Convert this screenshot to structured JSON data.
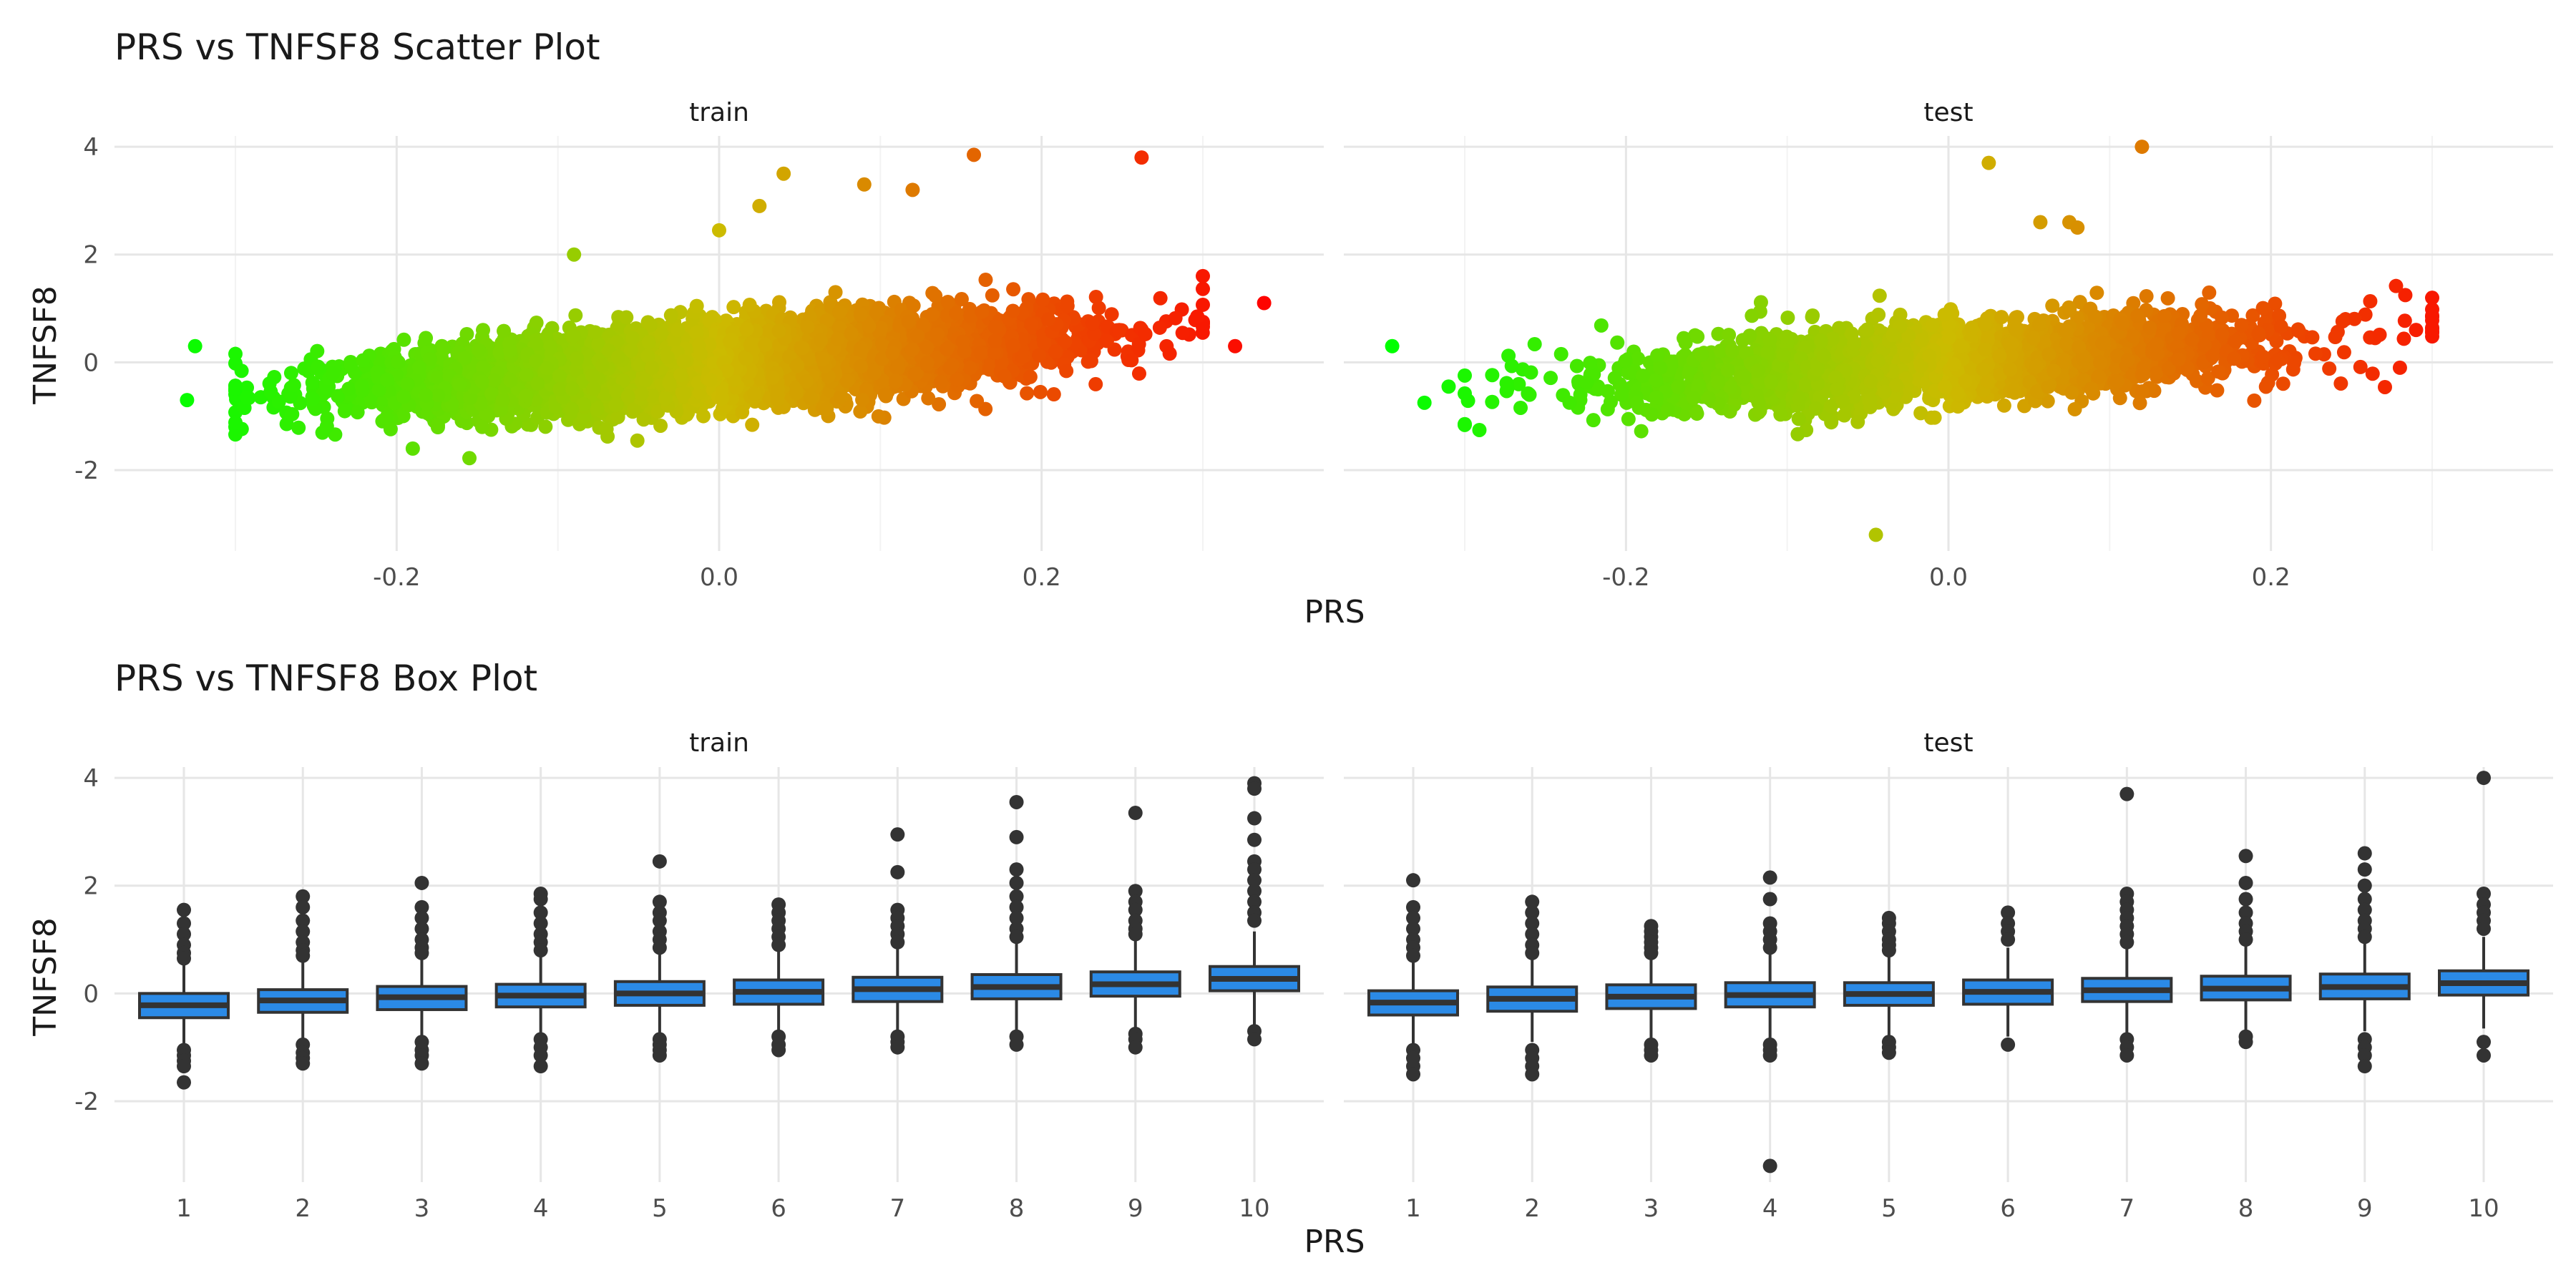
{
  "chart_data": [
    {
      "type": "scatter",
      "title": "PRS vs TNFSF8 Scatter Plot",
      "xlabel": "PRS",
      "ylabel": "TNFSF8",
      "facets": [
        "train",
        "test"
      ],
      "xlim": [
        -0.375,
        0.375
      ],
      "ylim": [
        -3.5,
        4.2
      ],
      "x_ticks": [
        -0.2,
        0.0,
        0.2
      ],
      "x_tick_labels": [
        "-0.2",
        "0.0",
        "0.2"
      ],
      "y_ticks": [
        -2,
        0,
        2,
        4
      ],
      "y_tick_labels": [
        "-2",
        "0",
        "2",
        "4"
      ],
      "grid": true,
      "color_gradient": [
        "#00ff00",
        "#ccbb00",
        "#ff0000"
      ],
      "trend": {
        "slope": 2.0,
        "intercept": 0.0,
        "sd": 0.35
      },
      "panels": [
        {
          "facet": "train",
          "n_points": 6000,
          "x_mean": 0.0,
          "x_sd": 0.1,
          "highlighted_points": [
            {
              "x": -0.325,
              "y": 0.3
            },
            {
              "x": -0.33,
              "y": -0.7
            },
            {
              "x": -0.19,
              "y": -1.6
            },
            {
              "x": -0.09,
              "y": 2.0
            },
            {
              "x": 0.0,
              "y": 2.45
            },
            {
              "x": 0.025,
              "y": 2.9
            },
            {
              "x": 0.04,
              "y": 3.5
            },
            {
              "x": 0.09,
              "y": 3.3
            },
            {
              "x": 0.12,
              "y": 3.2
            },
            {
              "x": 0.158,
              "y": 3.85
            },
            {
              "x": 0.262,
              "y": 3.8
            },
            {
              "x": 0.3,
              "y": 1.6
            },
            {
              "x": 0.338,
              "y": 1.1
            },
            {
              "x": 0.32,
              "y": 0.3
            }
          ]
        },
        {
          "facet": "test",
          "n_points": 2500,
          "x_mean": 0.0,
          "x_sd": 0.1,
          "highlighted_points": [
            {
              "x": -0.345,
              "y": 0.3
            },
            {
              "x": -0.325,
              "y": -0.75
            },
            {
              "x": -0.31,
              "y": -0.45
            },
            {
              "x": -0.045,
              "y": -3.2
            },
            {
              "x": 0.025,
              "y": 3.7
            },
            {
              "x": 0.12,
              "y": 4.0
            },
            {
              "x": 0.057,
              "y": 2.6
            },
            {
              "x": 0.075,
              "y": 2.6
            },
            {
              "x": 0.08,
              "y": 2.5
            },
            {
              "x": 0.29,
              "y": 0.6
            },
            {
              "x": 0.28,
              "y": -0.1
            }
          ]
        }
      ]
    },
    {
      "type": "box",
      "title": "PRS vs TNFSF8 Box Plot",
      "xlabel": "PRS",
      "ylabel": "TNFSF8",
      "facets": [
        "train",
        "test"
      ],
      "categories": [
        "1",
        "2",
        "3",
        "4",
        "5",
        "6",
        "7",
        "8",
        "9",
        "10"
      ],
      "ylim": [
        -3.5,
        4.2
      ],
      "y_ticks": [
        -2,
        0,
        2,
        4
      ],
      "y_tick_labels": [
        "-2",
        "0",
        "2",
        "4"
      ],
      "grid": true,
      "box_color": "#2b8ae6",
      "outline_color": "#333333",
      "panels": [
        {
          "facet": "train",
          "boxes": [
            {
              "q1": -0.45,
              "median": -0.22,
              "q3": 0.0,
              "lower": -1.0,
              "upper": 0.6,
              "outliers": [
                1.55,
                1.3,
                1.1,
                0.9,
                0.75,
                0.65,
                -1.05,
                -1.15,
                -1.25,
                -1.35,
                -1.65
              ]
            },
            {
              "q1": -0.35,
              "median": -0.13,
              "q3": 0.07,
              "lower": -0.95,
              "upper": 0.65,
              "outliers": [
                1.8,
                1.6,
                1.35,
                1.15,
                0.95,
                0.8,
                0.7,
                -0.95,
                -1.1,
                -1.2,
                -1.3
              ]
            },
            {
              "q1": -0.3,
              "median": -0.07,
              "q3": 0.13,
              "lower": -0.9,
              "upper": 0.7,
              "outliers": [
                2.05,
                1.6,
                1.4,
                1.2,
                1.0,
                0.85,
                0.75,
                -0.9,
                -1.05,
                -1.15,
                -1.3
              ]
            },
            {
              "q1": -0.25,
              "median": -0.04,
              "q3": 0.17,
              "lower": -0.85,
              "upper": 0.75,
              "outliers": [
                1.85,
                1.75,
                1.5,
                1.3,
                1.1,
                0.95,
                0.8,
                -0.85,
                -1.0,
                -1.15,
                -1.35
              ]
            },
            {
              "q1": -0.22,
              "median": 0.0,
              "q3": 0.22,
              "lower": -0.85,
              "upper": 0.8,
              "outliers": [
                2.45,
                1.7,
                1.5,
                1.35,
                1.15,
                1.0,
                0.85,
                -0.85,
                -0.95,
                -1.05,
                -1.15
              ]
            },
            {
              "q1": -0.2,
              "median": 0.03,
              "q3": 0.25,
              "lower": -0.8,
              "upper": 0.85,
              "outliers": [
                1.65,
                1.5,
                1.35,
                1.2,
                1.05,
                0.9,
                -0.8,
                -0.95,
                -1.05
              ]
            },
            {
              "q1": -0.15,
              "median": 0.08,
              "q3": 0.3,
              "lower": -0.75,
              "upper": 0.9,
              "outliers": [
                2.95,
                2.25,
                1.55,
                1.4,
                1.25,
                1.1,
                0.95,
                -0.8,
                -0.9,
                -1.0
              ]
            },
            {
              "q1": -0.1,
              "median": 0.12,
              "q3": 0.35,
              "lower": -0.75,
              "upper": 0.95,
              "outliers": [
                3.55,
                2.9,
                2.3,
                2.05,
                1.8,
                1.6,
                1.4,
                1.2,
                1.05,
                -0.8,
                -0.95
              ]
            },
            {
              "q1": -0.05,
              "median": 0.17,
              "q3": 0.4,
              "lower": -0.7,
              "upper": 1.0,
              "outliers": [
                3.35,
                1.9,
                1.7,
                1.55,
                1.35,
                1.2,
                1.1,
                -0.75,
                -0.85,
                -1.0
              ]
            },
            {
              "q1": 0.05,
              "median": 0.27,
              "q3": 0.5,
              "lower": -0.6,
              "upper": 1.15,
              "outliers": [
                3.9,
                3.8,
                3.25,
                2.85,
                2.45,
                2.3,
                2.1,
                1.9,
                1.7,
                1.5,
                1.35,
                -0.7,
                -0.85
              ]
            }
          ]
        },
        {
          "facet": "test",
          "boxes": [
            {
              "q1": -0.4,
              "median": -0.17,
              "q3": 0.05,
              "lower": -0.95,
              "upper": 0.6,
              "outliers": [
                2.1,
                1.6,
                1.4,
                1.2,
                1.0,
                0.85,
                0.7,
                -1.05,
                -1.2,
                -1.35,
                -1.5
              ]
            },
            {
              "q1": -0.33,
              "median": -0.1,
              "q3": 0.12,
              "lower": -0.9,
              "upper": 0.65,
              "outliers": [
                1.7,
                1.5,
                1.3,
                1.1,
                0.9,
                0.75,
                -1.05,
                -1.2,
                -1.35,
                -1.5
              ]
            },
            {
              "q1": -0.28,
              "median": -0.06,
              "q3": 0.16,
              "lower": -0.85,
              "upper": 0.7,
              "outliers": [
                1.25,
                1.15,
                1.05,
                0.95,
                0.85,
                0.75,
                -0.95,
                -1.05,
                -1.15
              ]
            },
            {
              "q1": -0.25,
              "median": -0.03,
              "q3": 0.2,
              "lower": -0.85,
              "upper": 0.75,
              "outliers": [
                2.15,
                1.75,
                1.3,
                1.15,
                1.0,
                0.85,
                -0.95,
                -1.05,
                -1.15,
                -3.2
              ]
            },
            {
              "q1": -0.22,
              "median": -0.01,
              "q3": 0.2,
              "lower": -0.85,
              "upper": 0.75,
              "outliers": [
                1.4,
                1.3,
                1.15,
                1.0,
                0.9,
                0.8,
                -0.9,
                -1.0,
                -1.1
              ]
            },
            {
              "q1": -0.2,
              "median": 0.03,
              "q3": 0.25,
              "lower": -0.8,
              "upper": 0.85,
              "outliers": [
                1.5,
                1.3,
                1.15,
                1.0,
                -0.95
              ]
            },
            {
              "q1": -0.15,
              "median": 0.06,
              "q3": 0.28,
              "lower": -0.75,
              "upper": 0.9,
              "outliers": [
                3.7,
                1.85,
                1.7,
                1.55,
                1.4,
                1.25,
                1.1,
                0.95,
                -0.85,
                -1.0,
                -1.15
              ]
            },
            {
              "q1": -0.12,
              "median": 0.09,
              "q3": 0.32,
              "lower": -0.75,
              "upper": 0.95,
              "outliers": [
                2.55,
                2.05,
                1.75,
                1.5,
                1.3,
                1.15,
                1.0,
                -0.8,
                -0.9
              ]
            },
            {
              "q1": -0.1,
              "median": 0.12,
              "q3": 0.36,
              "lower": -0.7,
              "upper": 1.0,
              "outliers": [
                2.6,
                2.3,
                2.0,
                1.75,
                1.55,
                1.35,
                1.2,
                1.05,
                -0.85,
                -1.0,
                -1.15,
                -1.35
              ]
            },
            {
              "q1": -0.03,
              "median": 0.19,
              "q3": 0.42,
              "lower": -0.65,
              "upper": 1.05,
              "outliers": [
                4.0,
                1.85,
                1.65,
                1.5,
                1.35,
                1.2,
                -0.9,
                -1.15
              ]
            }
          ]
        }
      ]
    }
  ]
}
